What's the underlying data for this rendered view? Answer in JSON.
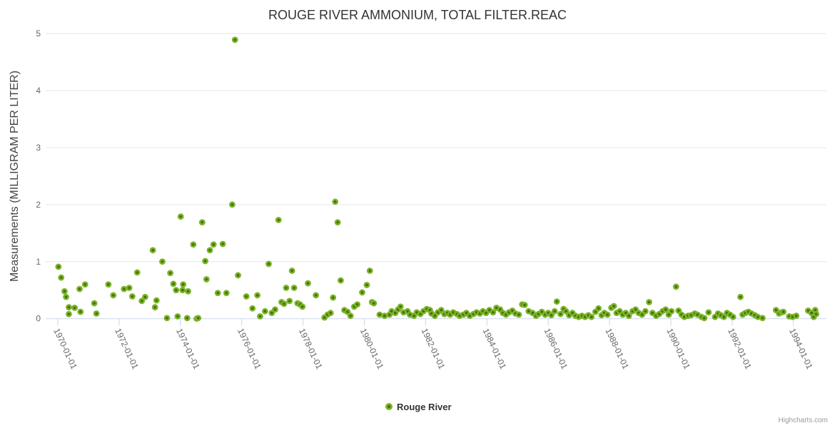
{
  "title": "ROUGE RIVER AMMONIUM, TOTAL FILTER.REAC",
  "y_axis": {
    "title": "Measurements (MILLIGRAM PER LITER)",
    "ticks": [
      0,
      1,
      2,
      3,
      4,
      5
    ]
  },
  "x_axis": {
    "tick_labels": [
      "1970-01-01",
      "1972-01-01",
      "1974-01-01",
      "1976-01-01",
      "1978-01-01",
      "1980-01-01",
      "1982-01-01",
      "1984-01-01",
      "1986-01-01",
      "1988-01-01",
      "1990-01-01",
      "1992-01-01",
      "1994-01-01"
    ]
  },
  "legend": {
    "label": "Rouge River"
  },
  "credits": "Highcharts.com",
  "colors": {
    "marker_outer": "#7cb22a",
    "marker_core": "#3e7203",
    "grid": "#e6e6e6",
    "axis": "#ccd6eb",
    "tick": "#ccd6eb"
  },
  "chart_data": {
    "type": "scatter",
    "title": "ROUGE RIVER AMMONIUM, TOTAL FILTER.REAC",
    "xlabel": "",
    "ylabel": "Measurements (MILLIGRAM PER LITER)",
    "xlim": [
      1969.6,
      1995.1
    ],
    "ylim": [
      0,
      5
    ],
    "grid": true,
    "legend_position": "bottom",
    "x_unit": "decimal year",
    "series": [
      {
        "name": "Rouge River",
        "points": [
          [
            1970.02,
            0.91
          ],
          [
            1970.11,
            0.72
          ],
          [
            1970.22,
            0.48
          ],
          [
            1970.27,
            0.38
          ],
          [
            1970.36,
            0.2
          ],
          [
            1970.36,
            0.08
          ],
          [
            1970.55,
            0.19
          ],
          [
            1970.71,
            0.52
          ],
          [
            1970.74,
            0.12
          ],
          [
            1970.89,
            0.6
          ],
          [
            1971.19,
            0.27
          ],
          [
            1971.26,
            0.09
          ],
          [
            1971.65,
            0.6
          ],
          [
            1971.81,
            0.41
          ],
          [
            1972.16,
            0.52
          ],
          [
            1972.33,
            0.54
          ],
          [
            1972.43,
            0.39
          ],
          [
            1972.59,
            0.81
          ],
          [
            1972.74,
            0.31
          ],
          [
            1972.85,
            0.38
          ],
          [
            1973.1,
            1.2
          ],
          [
            1973.17,
            0.2
          ],
          [
            1973.22,
            0.32
          ],
          [
            1973.41,
            1.0
          ],
          [
            1973.56,
            0.01
          ],
          [
            1973.67,
            0.8
          ],
          [
            1973.77,
            0.61
          ],
          [
            1973.86,
            0.5
          ],
          [
            1973.91,
            0.04
          ],
          [
            1974.01,
            1.79
          ],
          [
            1974.07,
            0.5
          ],
          [
            1974.09,
            0.6
          ],
          [
            1974.22,
            0.01
          ],
          [
            1974.25,
            0.48
          ],
          [
            1974.42,
            1.3
          ],
          [
            1974.53,
            0.0
          ],
          [
            1974.58,
            0.01
          ],
          [
            1974.71,
            1.69
          ],
          [
            1974.81,
            1.01
          ],
          [
            1974.85,
            0.69
          ],
          [
            1974.96,
            1.2
          ],
          [
            1975.08,
            1.3
          ],
          [
            1975.22,
            0.45
          ],
          [
            1975.38,
            1.31
          ],
          [
            1975.5,
            0.45
          ],
          [
            1975.69,
            2.0
          ],
          [
            1975.78,
            4.89
          ],
          [
            1975.88,
            0.76
          ],
          [
            1976.15,
            0.39
          ],
          [
            1976.35,
            0.18
          ],
          [
            1976.51,
            0.41
          ],
          [
            1976.6,
            0.04
          ],
          [
            1976.76,
            0.13
          ],
          [
            1976.88,
            0.96
          ],
          [
            1976.98,
            0.1
          ],
          [
            1977.09,
            0.16
          ],
          [
            1977.2,
            1.73
          ],
          [
            1977.3,
            0.29
          ],
          [
            1977.38,
            0.26
          ],
          [
            1977.45,
            0.54
          ],
          [
            1977.56,
            0.31
          ],
          [
            1977.64,
            0.84
          ],
          [
            1977.71,
            0.54
          ],
          [
            1977.82,
            0.27
          ],
          [
            1977.9,
            0.25
          ],
          [
            1977.98,
            0.21
          ],
          [
            1978.16,
            0.62
          ],
          [
            1978.42,
            0.41
          ],
          [
            1978.7,
            0.02
          ],
          [
            1978.8,
            0.07
          ],
          [
            1978.9,
            0.1
          ],
          [
            1978.98,
            0.37
          ],
          [
            1979.05,
            2.05
          ],
          [
            1979.13,
            1.69
          ],
          [
            1979.23,
            0.67
          ],
          [
            1979.35,
            0.15
          ],
          [
            1979.45,
            0.12
          ],
          [
            1979.55,
            0.05
          ],
          [
            1979.67,
            0.21
          ],
          [
            1979.77,
            0.25
          ],
          [
            1979.93,
            0.46
          ],
          [
            1980.08,
            0.59
          ],
          [
            1980.18,
            0.84
          ],
          [
            1980.25,
            0.29
          ],
          [
            1980.31,
            0.27
          ],
          [
            1980.5,
            0.07
          ],
          [
            1980.66,
            0.05
          ],
          [
            1980.82,
            0.07
          ],
          [
            1980.89,
            0.13
          ],
          [
            1981.01,
            0.1
          ],
          [
            1981.1,
            0.16
          ],
          [
            1981.18,
            0.21
          ],
          [
            1981.28,
            0.11
          ],
          [
            1981.41,
            0.13
          ],
          [
            1981.49,
            0.07
          ],
          [
            1981.62,
            0.05
          ],
          [
            1981.71,
            0.11
          ],
          [
            1981.83,
            0.08
          ],
          [
            1981.93,
            0.13
          ],
          [
            1982.04,
            0.17
          ],
          [
            1982.14,
            0.15
          ],
          [
            1982.19,
            0.09
          ],
          [
            1982.3,
            0.05
          ],
          [
            1982.4,
            0.11
          ],
          [
            1982.51,
            0.15
          ],
          [
            1982.61,
            0.08
          ],
          [
            1982.71,
            0.1
          ],
          [
            1982.8,
            0.07
          ],
          [
            1982.9,
            0.11
          ],
          [
            1983.02,
            0.08
          ],
          [
            1983.11,
            0.05
          ],
          [
            1983.23,
            0.07
          ],
          [
            1983.33,
            0.1
          ],
          [
            1983.44,
            0.05
          ],
          [
            1983.56,
            0.08
          ],
          [
            1983.66,
            0.11
          ],
          [
            1983.77,
            0.09
          ],
          [
            1983.87,
            0.13
          ],
          [
            1983.97,
            0.1
          ],
          [
            1984.08,
            0.15
          ],
          [
            1984.2,
            0.11
          ],
          [
            1984.31,
            0.19
          ],
          [
            1984.43,
            0.16
          ],
          [
            1984.52,
            0.1
          ],
          [
            1984.62,
            0.07
          ],
          [
            1984.72,
            0.11
          ],
          [
            1984.83,
            0.14
          ],
          [
            1984.93,
            0.09
          ],
          [
            1985.04,
            0.07
          ],
          [
            1985.15,
            0.25
          ],
          [
            1985.23,
            0.24
          ],
          [
            1985.36,
            0.13
          ],
          [
            1985.49,
            0.1
          ],
          [
            1985.6,
            0.05
          ],
          [
            1985.68,
            0.08
          ],
          [
            1985.79,
            0.12
          ],
          [
            1985.9,
            0.07
          ],
          [
            1986.0,
            0.1
          ],
          [
            1986.1,
            0.06
          ],
          [
            1986.21,
            0.13
          ],
          [
            1986.28,
            0.3
          ],
          [
            1986.4,
            0.08
          ],
          [
            1986.5,
            0.17
          ],
          [
            1986.58,
            0.13
          ],
          [
            1986.68,
            0.06
          ],
          [
            1986.79,
            0.1
          ],
          [
            1986.89,
            0.05
          ],
          [
            1986.99,
            0.03
          ],
          [
            1987.1,
            0.05
          ],
          [
            1987.2,
            0.03
          ],
          [
            1987.31,
            0.06
          ],
          [
            1987.41,
            0.03
          ],
          [
            1987.54,
            0.12
          ],
          [
            1987.64,
            0.18
          ],
          [
            1987.74,
            0.06
          ],
          [
            1987.83,
            0.1
          ],
          [
            1987.93,
            0.07
          ],
          [
            1988.06,
            0.19
          ],
          [
            1988.14,
            0.22
          ],
          [
            1988.23,
            0.1
          ],
          [
            1988.33,
            0.13
          ],
          [
            1988.43,
            0.07
          ],
          [
            1988.53,
            0.1
          ],
          [
            1988.63,
            0.05
          ],
          [
            1988.75,
            0.13
          ],
          [
            1988.85,
            0.16
          ],
          [
            1988.95,
            0.1
          ],
          [
            1989.06,
            0.07
          ],
          [
            1989.17,
            0.13
          ],
          [
            1989.29,
            0.29
          ],
          [
            1989.4,
            0.1
          ],
          [
            1989.52,
            0.05
          ],
          [
            1989.62,
            0.08
          ],
          [
            1989.73,
            0.13
          ],
          [
            1989.83,
            0.16
          ],
          [
            1989.93,
            0.07
          ],
          [
            1990.02,
            0.13
          ],
          [
            1990.17,
            0.56
          ],
          [
            1990.25,
            0.14
          ],
          [
            1990.35,
            0.07
          ],
          [
            1990.44,
            0.03
          ],
          [
            1990.56,
            0.05
          ],
          [
            1990.66,
            0.06
          ],
          [
            1990.78,
            0.09
          ],
          [
            1990.87,
            0.07
          ],
          [
            1991.0,
            0.03
          ],
          [
            1991.09,
            0.01
          ],
          [
            1991.23,
            0.11
          ],
          [
            1991.44,
            0.03
          ],
          [
            1991.54,
            0.09
          ],
          [
            1991.63,
            0.06
          ],
          [
            1991.73,
            0.03
          ],
          [
            1991.83,
            0.1
          ],
          [
            1991.93,
            0.07
          ],
          [
            1992.03,
            0.03
          ],
          [
            1992.27,
            0.38
          ],
          [
            1992.34,
            0.07
          ],
          [
            1992.43,
            0.1
          ],
          [
            1992.53,
            0.12
          ],
          [
            1992.63,
            0.09
          ],
          [
            1992.74,
            0.06
          ],
          [
            1992.84,
            0.03
          ],
          [
            1992.99,
            0.01
          ],
          [
            1993.43,
            0.15
          ],
          [
            1993.53,
            0.09
          ],
          [
            1993.61,
            0.11
          ],
          [
            1993.67,
            0.12
          ],
          [
            1993.86,
            0.04
          ],
          [
            1993.97,
            0.03
          ],
          [
            1994.09,
            0.05
          ],
          [
            1994.48,
            0.14
          ],
          [
            1994.59,
            0.1
          ],
          [
            1994.66,
            0.03
          ],
          [
            1994.71,
            0.15
          ],
          [
            1994.74,
            0.08
          ]
        ]
      }
    ]
  }
}
